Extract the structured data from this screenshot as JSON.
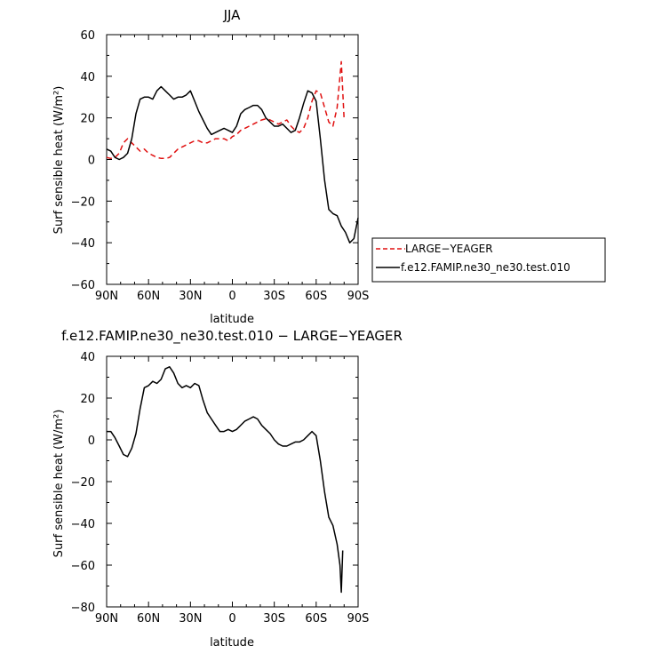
{
  "chart_data": [
    {
      "type": "line",
      "title": "JJA",
      "xlabel": "latitude",
      "ylabel": "Surf sensible heat (W/m²)",
      "ylim": [
        -60,
        60
      ],
      "xlim": [
        90,
        -90
      ],
      "x_ticks": [
        90,
        60,
        30,
        0,
        -30,
        -60,
        -90
      ],
      "x_tick_labels": [
        "90N",
        "60N",
        "30N",
        "0",
        "30S",
        "60S",
        "90S"
      ],
      "y_ticks": [
        60,
        40,
        20,
        0,
        -20,
        -40,
        -60
      ],
      "y_tick_labels": [
        "60",
        "40",
        "20",
        "0",
        "−20",
        "−40",
        "−60"
      ],
      "legend": "right",
      "series": [
        {
          "name": "LARGE−YEAGER",
          "color": "#e01010",
          "style": "dashed",
          "x": [
            90,
            87,
            84,
            81,
            78,
            75,
            72,
            69,
            66,
            63,
            60,
            57,
            54,
            51,
            48,
            45,
            42,
            39,
            36,
            33,
            30,
            27,
            24,
            21,
            18,
            15,
            12,
            9,
            6,
            3,
            0,
            -3,
            -6,
            -9,
            -12,
            -15,
            -18,
            -21,
            -24,
            -27,
            -30,
            -33,
            -36,
            -39,
            -42,
            -45,
            -48,
            -51,
            -54,
            -57,
            -60,
            -63,
            -66,
            -69,
            -72,
            -75,
            -78,
            -80
          ],
          "y": [
            1,
            0.5,
            1,
            3,
            8,
            10,
            8,
            6,
            4,
            5,
            3,
            2,
            1,
            0.5,
            0.5,
            1,
            3,
            5,
            6,
            7,
            8,
            9,
            9,
            8,
            8,
            9,
            10,
            10,
            10,
            9,
            11,
            12,
            14,
            15,
            16,
            17,
            18,
            19,
            19.5,
            19,
            18,
            17,
            18,
            19,
            16,
            14,
            13,
            15,
            20,
            28,
            33,
            32,
            25,
            18,
            16,
            25,
            47,
            19
          ]
        },
        {
          "name": "f.e12.FAMIP.ne30_ne30.test.010",
          "color": "#000000",
          "style": "solid",
          "x": [
            90,
            87,
            84,
            81,
            78,
            75,
            72,
            69,
            66,
            63,
            60,
            57,
            54,
            51,
            48,
            45,
            42,
            39,
            36,
            33,
            30,
            27,
            24,
            21,
            18,
            15,
            12,
            9,
            6,
            3,
            0,
            -3,
            -6,
            -9,
            -12,
            -15,
            -18,
            -21,
            -24,
            -27,
            -30,
            -33,
            -36,
            -39,
            -42,
            -45,
            -48,
            -51,
            -54,
            -57,
            -60,
            -63,
            -66,
            -69,
            -72,
            -75,
            -78,
            -81,
            -84,
            -87,
            -90
          ],
          "y": [
            5,
            4,
            1,
            0,
            1,
            3,
            10,
            22,
            29,
            30,
            30,
            29,
            33,
            35,
            33,
            31,
            29,
            30,
            30,
            31,
            33,
            28,
            23,
            19,
            15,
            12,
            13,
            14,
            15,
            14,
            13,
            16,
            22,
            24,
            25,
            26,
            26,
            24,
            20,
            18,
            16,
            16,
            17,
            15,
            13,
            14,
            20,
            27,
            33,
            32,
            28,
            10,
            -10,
            -24,
            -26,
            -27,
            -32,
            -35,
            -40,
            -38,
            -28
          ]
        }
      ]
    },
    {
      "type": "line",
      "title": "f.e12.FAMIP.ne30_ne30.test.010 − LARGE−YEAGER",
      "xlabel": "latitude",
      "ylabel": "Surf sensible heat (W/m²)",
      "ylim": [
        -80,
        40
      ],
      "xlim": [
        90,
        -90
      ],
      "x_ticks": [
        90,
        60,
        30,
        0,
        -30,
        -60,
        -90
      ],
      "x_tick_labels": [
        "90N",
        "60N",
        "30N",
        "0",
        "30S",
        "60S",
        "90S"
      ],
      "y_ticks": [
        40,
        20,
        0,
        -20,
        -40,
        -60,
        -80
      ],
      "y_tick_labels": [
        "40",
        "20",
        "0",
        "−20",
        "−40",
        "−60",
        "−80"
      ],
      "series": [
        {
          "color": "#000000",
          "style": "solid",
          "x": [
            90,
            87,
            84,
            81,
            78,
            75,
            72,
            69,
            66,
            63,
            60,
            57,
            54,
            51,
            48,
            45,
            42,
            39,
            36,
            33,
            30,
            27,
            24,
            21,
            18,
            15,
            12,
            9,
            6,
            3,
            0,
            -3,
            -6,
            -9,
            -12,
            -15,
            -18,
            -21,
            -24,
            -27,
            -30,
            -33,
            -36,
            -39,
            -42,
            -45,
            -48,
            -51,
            -54,
            -57,
            -60,
            -63,
            -66,
            -69,
            -72,
            -75,
            -77,
            -78,
            -79
          ],
          "y": [
            4,
            4,
            1,
            -3,
            -7,
            -8,
            -4,
            3,
            15,
            25,
            26,
            28,
            27,
            29,
            34,
            35,
            32,
            27,
            25,
            26,
            25,
            27,
            26,
            19,
            13,
            10,
            7,
            4,
            4,
            5,
            4,
            5,
            7,
            9,
            10,
            11,
            10,
            7,
            5,
            3,
            0,
            -2,
            -3,
            -3,
            -2,
            -1,
            -1,
            0,
            2,
            4,
            2,
            -10,
            -25,
            -37,
            -41,
            -50,
            -60,
            -73,
            -53
          ]
        }
      ]
    }
  ]
}
